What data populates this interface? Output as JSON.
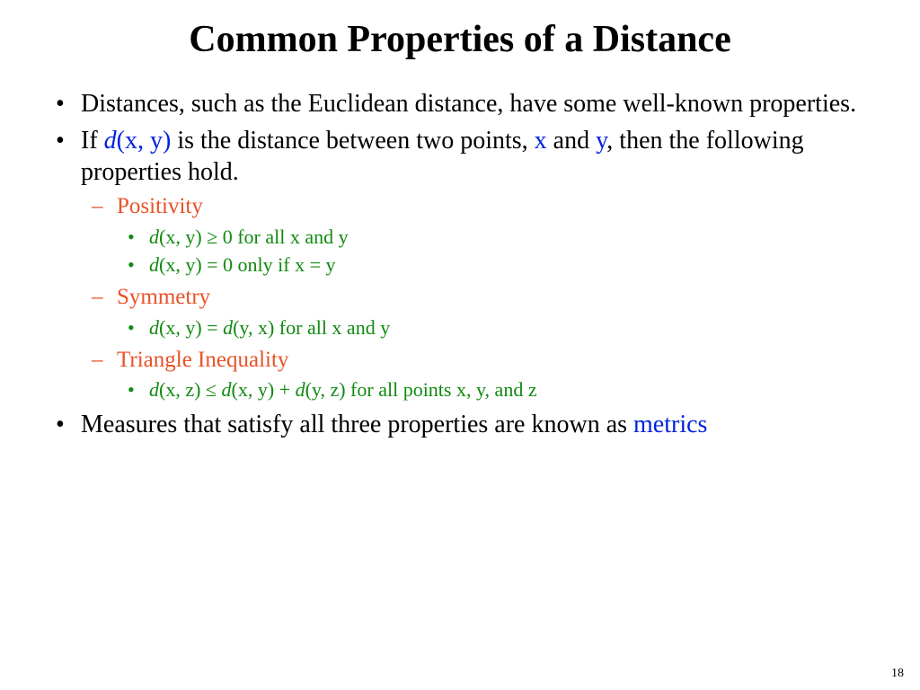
{
  "colors": {
    "background": "#ffffff",
    "text": "#000000",
    "blue": "#0023dd",
    "orange": "#e85227",
    "green": "#108a10"
  },
  "fonts": {
    "family": "Times New Roman",
    "title_size_pt": 42,
    "bullet1_size_pt": 28,
    "bullet2_size_pt": 25,
    "bullet3_size_pt": 22
  },
  "title": "Common Properties of a Distance",
  "bullets": {
    "b1": "Distances, such as the Euclidean distance, have some well-known properties.",
    "b2_pre": "If ",
    "b2_dxy": "d",
    "b2_paren": "(x, y)",
    "b2_mid": " is the distance between two points, ",
    "b2_x": "x",
    "b2_and": " and ",
    "b2_y": "y",
    "b2_post": ", then the following properties hold.",
    "positivity": "Positivity",
    "pos1_d": "d",
    "pos1_rest": "(x, y) ≥ 0 for all x and y",
    "pos2_d": "d",
    "pos2_rest": "(x, y) = 0 only if x = y",
    "symmetry": "Symmetry",
    "sym_d1": "d",
    "sym_mid1": "(x, y) = ",
    "sym_d2": "d",
    "sym_rest": "(y, x) for all x and y",
    "triangle": "Triangle Inequality",
    "tri_d1": "d",
    "tri_p1": "(x, z) ≤ ",
    "tri_d2": "d",
    "tri_p2": "(x, y) + ",
    "tri_d3": "d",
    "tri_p3": "(y, z) for all points x, y, and z",
    "b3_pre": "Measures that satisfy all three properties are known as ",
    "b3_metrics": "metrics"
  },
  "page_number": "18"
}
